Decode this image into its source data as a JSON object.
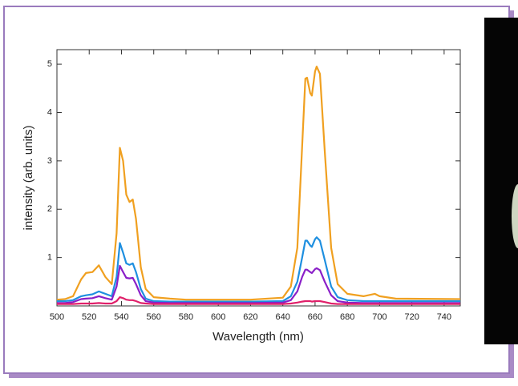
{
  "chart_data": {
    "type": "line",
    "xlabel": "Wavelength (nm)",
    "ylabel": "intensity (arb. units)",
    "x": [
      500,
      505,
      510,
      515,
      518,
      522,
      526,
      530,
      534,
      537,
      539,
      541,
      543,
      545,
      547,
      549,
      552,
      555,
      560,
      570,
      580,
      600,
      620,
      640,
      645,
      649,
      652,
      654,
      655,
      657,
      658,
      660,
      661,
      663,
      666,
      670,
      674,
      680,
      690,
      697,
      700,
      710,
      750
    ],
    "series": [
      {
        "color": "#f0a020",
        "values": [
          0.13,
          0.14,
          0.2,
          0.55,
          0.68,
          0.7,
          0.84,
          0.6,
          0.45,
          1.5,
          3.27,
          3.0,
          2.3,
          2.15,
          2.2,
          1.8,
          0.8,
          0.35,
          0.18,
          0.15,
          0.13,
          0.13,
          0.13,
          0.17,
          0.4,
          1.2,
          3.3,
          4.7,
          4.72,
          4.4,
          4.35,
          4.85,
          4.95,
          4.8,
          3.2,
          1.2,
          0.45,
          0.25,
          0.2,
          0.25,
          0.2,
          0.15,
          0.14
        ]
      },
      {
        "color": "#1e8fe0",
        "values": [
          0.1,
          0.1,
          0.12,
          0.2,
          0.22,
          0.24,
          0.3,
          0.25,
          0.2,
          0.6,
          1.3,
          1.1,
          0.88,
          0.85,
          0.88,
          0.7,
          0.35,
          0.15,
          0.1,
          0.09,
          0.09,
          0.09,
          0.09,
          0.1,
          0.2,
          0.5,
          1.0,
          1.35,
          1.35,
          1.25,
          1.22,
          1.38,
          1.42,
          1.35,
          0.95,
          0.4,
          0.18,
          0.12,
          0.1,
          0.1,
          0.1,
          0.1,
          0.1
        ]
      },
      {
        "color": "#8a1fc8",
        "values": [
          0.06,
          0.06,
          0.08,
          0.14,
          0.15,
          0.16,
          0.2,
          0.16,
          0.13,
          0.4,
          0.83,
          0.7,
          0.58,
          0.57,
          0.58,
          0.45,
          0.22,
          0.1,
          0.07,
          0.06,
          0.06,
          0.06,
          0.06,
          0.07,
          0.12,
          0.3,
          0.6,
          0.75,
          0.75,
          0.7,
          0.68,
          0.76,
          0.78,
          0.74,
          0.5,
          0.22,
          0.1,
          0.07,
          0.06,
          0.06,
          0.06,
          0.06,
          0.06
        ]
      },
      {
        "color": "#e0206a",
        "values": [
          0.04,
          0.04,
          0.04,
          0.05,
          0.05,
          0.05,
          0.06,
          0.05,
          0.05,
          0.1,
          0.18,
          0.16,
          0.13,
          0.12,
          0.12,
          0.1,
          0.06,
          0.05,
          0.04,
          0.04,
          0.04,
          0.04,
          0.04,
          0.04,
          0.05,
          0.07,
          0.09,
          0.1,
          0.1,
          0.1,
          0.09,
          0.1,
          0.1,
          0.1,
          0.08,
          0.05,
          0.04,
          0.04,
          0.04,
          0.04,
          0.04,
          0.04,
          0.04
        ]
      }
    ],
    "xlim": [
      500,
      750
    ],
    "ylim": [
      0,
      5.3
    ],
    "xticks": [
      500,
      520,
      540,
      560,
      580,
      600,
      620,
      640,
      660,
      680,
      700,
      720,
      740
    ],
    "yticks": [
      1,
      2,
      3,
      4,
      5
    ]
  }
}
